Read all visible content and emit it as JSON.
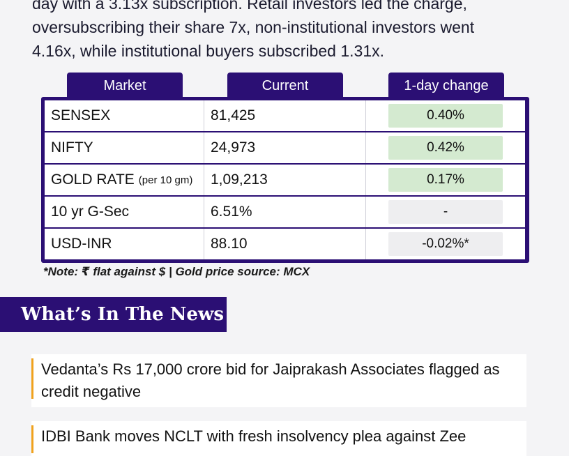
{
  "intro": {
    "line1": "day with a 3.13x subscription. Retail investors led the charge,",
    "line2": "oversubscribing their share 7x, non-institutional investors went",
    "line3": "4.16x, while institutional buyers subscribed 1.31x."
  },
  "table": {
    "headers": [
      "Market",
      "Current",
      "1-day change"
    ],
    "rows": [
      {
        "name": "SENSEX",
        "sub": "",
        "current": "81,425",
        "change": "0.40%",
        "trend": "green"
      },
      {
        "name": "NIFTY",
        "sub": "",
        "current": "24,973",
        "change": "0.42%",
        "trend": "green"
      },
      {
        "name": "GOLD RATE",
        "sub": "(per 10 gm)",
        "current": "1,09,213",
        "change": "0.17%",
        "trend": "green"
      },
      {
        "name": "10 yr G-Sec",
        "sub": "",
        "current": "6.51%",
        "change": "-",
        "trend": "grey"
      },
      {
        "name": "USD-INR",
        "sub": "",
        "current": "88.10",
        "change": "-0.02%*",
        "trend": "grey"
      }
    ]
  },
  "note": "*Note: ₹ flat against $ | Gold price source: MCX",
  "news": {
    "title": "What’s In The News",
    "items": [
      "Vedanta’s Rs 17,000 crore bid for Jaiprakash Associates flagged as credit negative",
      "IDBI Bank moves NCLT with fresh insolvency plea against Zee"
    ]
  },
  "colors": {
    "header_bg": "#2b0f74",
    "positive": "#d4ead0",
    "neutral": "#eeeef0",
    "accent_bar": "#f0a21d"
  }
}
